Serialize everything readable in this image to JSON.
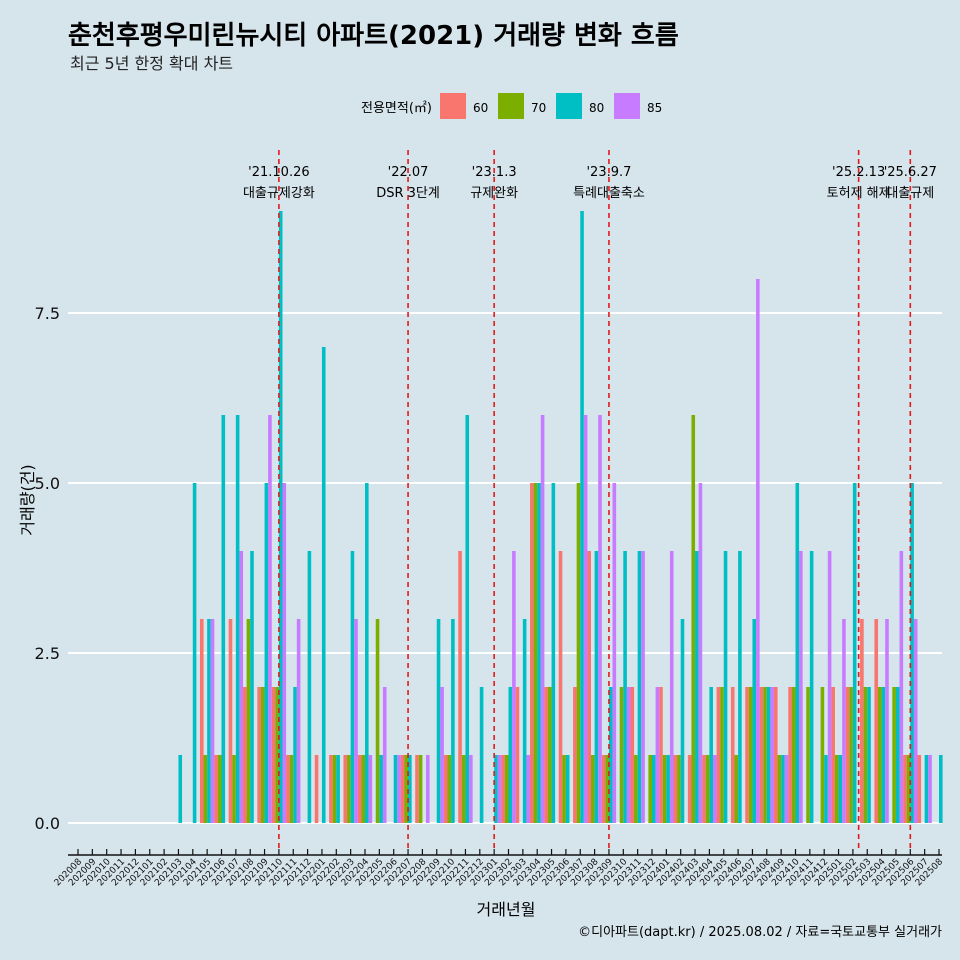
{
  "chart_data": {
    "type": "bar",
    "title": "춘천후평우미린뉴시티 아파트(2021) 거래량 변화 흐름",
    "subtitle": "최근 5년 한정 확대 차트",
    "xlabel": "거래년월",
    "ylabel": "거래량(건)",
    "caption": "©디아파트(dapt.kr) / 2025.08.02 / 자료=국토교통부 실거래가",
    "legend_title": "전용면적(㎡)",
    "legend_position": "top",
    "ylim": [
      -0.45,
      9.6
    ],
    "yticks": [
      0.0,
      2.5,
      5.0,
      7.5
    ],
    "ytick_labels": [
      "0.0",
      "2.5",
      "5.0",
      "7.5"
    ],
    "categories": [
      "202008",
      "202009",
      "202010",
      "202011",
      "202012",
      "202101",
      "202102",
      "202103",
      "202104",
      "202105",
      "202106",
      "202107",
      "202108",
      "202109",
      "202110",
      "202111",
      "202112",
      "202201",
      "202202",
      "202203",
      "202204",
      "202205",
      "202206",
      "202207",
      "202208",
      "202209",
      "202210",
      "202211",
      "202212",
      "202301",
      "202302",
      "202303",
      "202304",
      "202305",
      "202306",
      "202307",
      "202308",
      "202309",
      "202310",
      "202311",
      "202312",
      "202401",
      "202402",
      "202403",
      "202404",
      "202405",
      "202406",
      "202407",
      "202408",
      "202409",
      "202410",
      "202411",
      "202412",
      "202501",
      "202502",
      "202503",
      "202504",
      "202505",
      "202506",
      "202507",
      "202508"
    ],
    "series": [
      {
        "name": "60",
        "color": "#f8766d",
        "values": [
          0,
          0,
          0,
          0,
          0,
          0,
          0,
          0,
          0,
          3,
          1,
          3,
          2,
          2,
          2,
          1,
          0,
          1,
          1,
          1,
          1,
          0,
          0,
          1,
          1,
          0,
          1,
          4,
          0,
          0,
          1,
          2,
          5,
          2,
          4,
          2,
          4,
          1,
          0,
          2,
          0,
          2,
          1,
          1,
          1,
          2,
          2,
          2,
          2,
          2,
          2,
          0,
          0,
          2,
          2,
          3,
          3,
          0,
          1,
          1,
          0
        ]
      },
      {
        "name": "70",
        "color": "#7cae00",
        "values": [
          0,
          0,
          0,
          0,
          0,
          0,
          0,
          0,
          0,
          1,
          1,
          1,
          3,
          2,
          2,
          1,
          0,
          0,
          1,
          1,
          1,
          3,
          0,
          1,
          1,
          0,
          1,
          1,
          0,
          0,
          1,
          0,
          5,
          2,
          1,
          5,
          1,
          1,
          2,
          1,
          1,
          1,
          1,
          6,
          1,
          2,
          1,
          2,
          2,
          1,
          2,
          2,
          2,
          1,
          2,
          2,
          2,
          2,
          1,
          0,
          0
        ]
      },
      {
        "name": "80",
        "color": "#00bfc4",
        "values": [
          0,
          0,
          0,
          0,
          0,
          0,
          0,
          1,
          5,
          3,
          6,
          6,
          4,
          5,
          9,
          2,
          4,
          7,
          1,
          4,
          5,
          1,
          1,
          1,
          0,
          3,
          3,
          6,
          2,
          1,
          2,
          3,
          5,
          5,
          1,
          9,
          4,
          2,
          4,
          4,
          1,
          1,
          3,
          4,
          2,
          4,
          4,
          3,
          2,
          1,
          5,
          4,
          1,
          1,
          5,
          2,
          2,
          2,
          5,
          1,
          1
        ]
      },
      {
        "name": "85",
        "color": "#c77cff",
        "values": [
          0,
          0,
          0,
          0,
          0,
          0,
          0,
          0,
          0,
          3,
          0,
          4,
          0,
          6,
          5,
          3,
          0,
          0,
          0,
          3,
          1,
          2,
          1,
          0,
          1,
          2,
          0,
          1,
          0,
          1,
          4,
          1,
          6,
          0,
          0,
          6,
          6,
          5,
          2,
          4,
          2,
          4,
          0,
          5,
          1,
          0,
          0,
          8,
          2,
          1,
          4,
          0,
          4,
          3,
          0,
          0,
          3,
          4,
          3,
          1,
          0
        ]
      }
    ],
    "event_lines": [
      {
        "date": "'21.10.26",
        "label": "대출규제강화",
        "index": 14.0
      },
      {
        "date": "'22.07",
        "label": "DSR 3단계",
        "index": 23.0
      },
      {
        "date": "'23.1.3",
        "label": "규제완화",
        "index": 29.0
      },
      {
        "date": "'23.9.7",
        "label": "특례대출축소",
        "index": 37.0
      },
      {
        "date": "'25.2.13",
        "label": "토허제 해제",
        "index": 54.4
      },
      {
        "date": "'25.6.27",
        "label": "대출규제",
        "index": 58.0
      }
    ]
  }
}
